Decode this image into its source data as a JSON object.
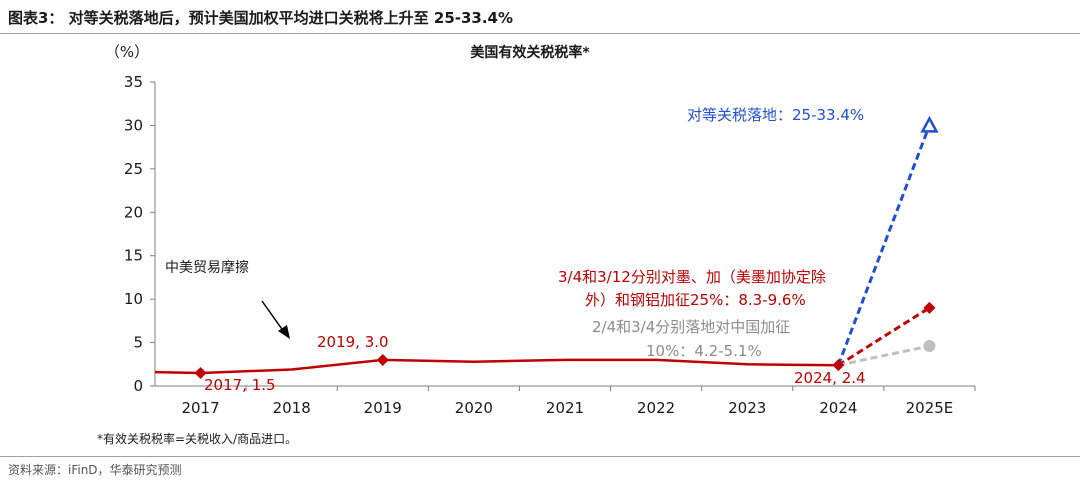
{
  "header": {
    "title": "图表3：  对等关税落地后，预计美国加权平均进口关税将上升至 25-33.4%"
  },
  "footnote": "*有效关税税率=关税收入/商品进口。",
  "source": "资料来源：iFinD，华泰研究预测",
  "chart_data": {
    "type": "line",
    "title": "美国有效关税税率*",
    "ylabel": "（%）",
    "xlabel": "",
    "categories": [
      "2017",
      "2018",
      "2019",
      "2020",
      "2021",
      "2022",
      "2023",
      "2024",
      "2025E"
    ],
    "ylim": [
      0,
      35
    ],
    "yticks": [
      0,
      5,
      10,
      15,
      20,
      25,
      30,
      35
    ],
    "grid": false,
    "series": [
      {
        "key": "historical",
        "color": "#c00000",
        "style": "solid",
        "x": [
          "2016.5",
          "2017",
          "2018",
          "2019",
          "2020",
          "2021",
          "2022",
          "2023",
          "2024"
        ],
        "values": [
          1.6,
          1.5,
          1.9,
          3.0,
          2.8,
          3.0,
          3.0,
          2.5,
          2.4
        ]
      },
      {
        "key": "projection_high",
        "color": "#1f4fd8",
        "style": "dashed",
        "marker": "open-triangle",
        "x": [
          "2024",
          "2025E"
        ],
        "values": [
          2.4,
          30.0
        ]
      },
      {
        "key": "projection_mid",
        "color": "#c00000",
        "style": "dashed",
        "marker": "diamond",
        "x": [
          "2024",
          "2025E"
        ],
        "values": [
          2.4,
          9.0
        ]
      },
      {
        "key": "projection_low",
        "color": "#bfbfbf",
        "style": "dashed",
        "marker": "circle",
        "x": [
          "2024",
          "2025E"
        ],
        "values": [
          2.4,
          4.6
        ]
      }
    ],
    "markers": [
      {
        "x": "2017",
        "y": 1.5,
        "color": "#c00000"
      },
      {
        "x": "2019",
        "y": 3.0,
        "color": "#c00000"
      },
      {
        "x": "2024",
        "y": 2.4,
        "color": "#c00000"
      }
    ],
    "annotations": {
      "trade_friction": "中美贸易摩擦",
      "label_2017": "2017, 1.5",
      "label_2019": "2019, 3.0",
      "label_2024": "2024, 2.4",
      "reciprocal": "对等关税落地：25-33.4%",
      "mexico_line1": "3/4和3/12分别对墨、加（美墨加协定除",
      "mexico_line2": "外）和钢铝加征25%：8.3-9.6%",
      "china_line1": "2/4和3/4分别落地对中国加征",
      "china_line2": "10%：4.2-5.1%"
    },
    "colors": {
      "red": "#c00000",
      "blue": "#1f4fd8",
      "gray": "#a6a6a6",
      "light_gray": "#bfbfbf"
    }
  }
}
